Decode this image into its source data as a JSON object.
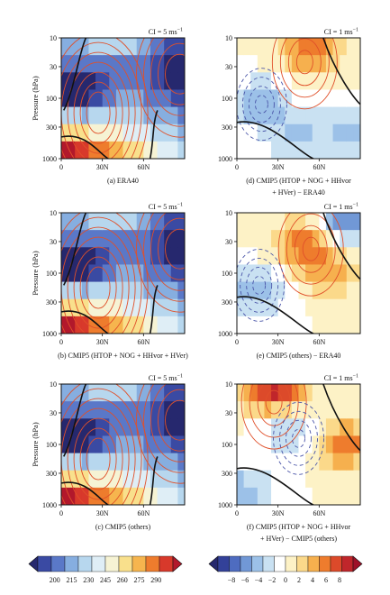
{
  "chart_data": [
    {
      "id": "a",
      "type": "heatmap",
      "caption": "(a) ERA40",
      "ci_text": "CI = 5 ms",
      "ci_superscript": "−1",
      "ylabel": "Pressure (hPa)",
      "yticks": [
        "10",
        "30",
        "100",
        "300",
        "1000"
      ],
      "xticks": [
        "0",
        "30N",
        "60N"
      ],
      "contour_color": "#e0502a",
      "fill_scale": "temperature"
    },
    {
      "id": "d",
      "type": "heatmap",
      "caption": "(d) CMIP5 (HTOP + NOG + HHvor",
      "caption_line2": "+ HVer) − ERA40",
      "ci_text": "CI = 1 ms",
      "ci_superscript": "−1",
      "ylabel": "",
      "yticks": [
        "10",
        "30",
        "100",
        "300",
        "1000"
      ],
      "xticks": [
        "0",
        "30N",
        "60N"
      ],
      "contour_color": "#e0502a",
      "fill_scale": "difference"
    },
    {
      "id": "b",
      "type": "heatmap",
      "caption": "(b) CMIP5 (HTOP + NOG + HHvor + HVer)",
      "ci_text": "CI = 5 ms",
      "ci_superscript": "−1",
      "ylabel": "Pressure (hPa)",
      "yticks": [
        "10",
        "30",
        "100",
        "300",
        "1000"
      ],
      "xticks": [
        "0",
        "30N",
        "60N"
      ],
      "contour_color": "#e0502a",
      "fill_scale": "temperature"
    },
    {
      "id": "e",
      "type": "heatmap",
      "caption": "(e) CMIP5 (others) − ERA40",
      "ci_text": "CI = 1 ms",
      "ci_superscript": "−1",
      "ylabel": "",
      "yticks": [
        "10",
        "30",
        "100",
        "300",
        "1000"
      ],
      "xticks": [
        "0",
        "30N",
        "60N"
      ],
      "contour_color": "#e0502a",
      "fill_scale": "difference"
    },
    {
      "id": "c",
      "type": "heatmap",
      "caption": "(c) CMIP5 (others)",
      "ci_text": "CI = 5 ms",
      "ci_superscript": "−1",
      "ylabel": "Pressure (hPa)",
      "yticks": [
        "10",
        "30",
        "100",
        "300",
        "1000"
      ],
      "xticks": [
        "0",
        "30N",
        "60N"
      ],
      "contour_color": "#e0502a",
      "fill_scale": "temperature"
    },
    {
      "id": "f",
      "type": "heatmap",
      "caption": "(f) CMIP5 (HTOP + NOG + HHvor",
      "caption_line2": "+ HVer) − CMIP5 (others)",
      "ci_text": "CI = 1 ms",
      "ci_superscript": "−1",
      "ylabel": "",
      "yticks": [
        "10",
        "30",
        "100",
        "300",
        "1000"
      ],
      "xticks": [
        "0",
        "30N",
        "60N"
      ],
      "contour_color": "#e0502a",
      "fill_scale": "difference"
    }
  ],
  "colorbars": [
    {
      "id": "temperature",
      "labels": [
        "200",
        "215",
        "230",
        "245",
        "260",
        "275",
        "290"
      ],
      "colors": [
        "#26286e",
        "#3a4aa3",
        "#5a78c8",
        "#86aee0",
        "#b7d7ee",
        "#dfeef6",
        "#f6f3d4",
        "#f9e08c",
        "#f6b54e",
        "#ee7c2d",
        "#d8392b",
        "#b2182b"
      ]
    },
    {
      "id": "difference",
      "labels": [
        "−8",
        "−6",
        "−4",
        "−2",
        "0",
        "2",
        "4",
        "6",
        "8"
      ],
      "colors": [
        "#26286e",
        "#334199",
        "#4e6cc0",
        "#7198d6",
        "#9cc1e8",
        "#c9e1f2",
        "#ffffff",
        "#fdf2c6",
        "#fbd98a",
        "#f6b04e",
        "#ee7c2d",
        "#dc4a2a",
        "#c0262b",
        "#9e1128"
      ]
    }
  ]
}
